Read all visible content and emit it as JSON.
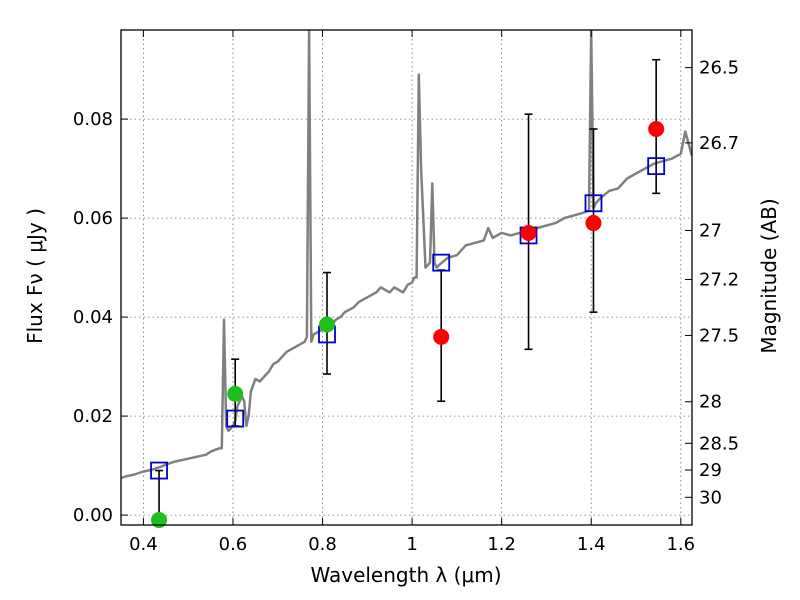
{
  "chart_data": {
    "type": "scatter",
    "xlabel": "Wavelength  λ (μm)",
    "ylabel": "Flux  Fν  ( μJy )",
    "ylabel_right": "Magnitude (AB)",
    "xlim": [
      0.35,
      1.625
    ],
    "ylim": [
      -0.002,
      0.098
    ],
    "grid": true,
    "x_ticks": [
      0.4,
      0.6,
      0.8,
      1.0,
      1.2,
      1.4,
      1.6
    ],
    "x_tick_labels": [
      "0.4",
      "0.6",
      "0.8",
      "1",
      "1.2",
      "1.4",
      "1.6"
    ],
    "y_ticks": [
      0.0,
      0.02,
      0.04,
      0.06,
      0.08
    ],
    "y_tick_labels": [
      "0.00",
      "0.02",
      "0.04",
      "0.06",
      "0.08"
    ],
    "right_ticks": [
      {
        "label": "26.5",
        "flux": 0.0904
      },
      {
        "label": "26.7",
        "flux": 0.0752
      },
      {
        "label": "27",
        "flux": 0.0575
      },
      {
        "label": "27.2",
        "flux": 0.0476
      },
      {
        "label": "27.5",
        "flux": 0.0363
      },
      {
        "label": "28",
        "flux": 0.0229
      },
      {
        "label": "28.5",
        "flux": 0.0145
      },
      {
        "label": "29",
        "flux": 0.0091
      },
      {
        "label": "30",
        "flux": 0.0036
      }
    ],
    "colors": {
      "model": "#808080",
      "detections_green": "#1fbf1f",
      "detections_red": "#ff0000",
      "synthetic_box": "#0000cc",
      "errorbar": "#000000"
    },
    "series": [
      {
        "kind": "model_spectrum",
        "x": [
          0.35,
          0.36,
          0.37,
          0.38,
          0.39,
          0.4,
          0.41,
          0.42,
          0.43,
          0.44,
          0.45,
          0.46,
          0.47,
          0.48,
          0.49,
          0.5,
          0.51,
          0.52,
          0.53,
          0.54,
          0.55,
          0.56,
          0.57,
          0.575,
          0.58,
          0.585,
          0.59,
          0.6,
          0.605,
          0.61,
          0.62,
          0.625,
          0.63,
          0.635,
          0.64,
          0.65,
          0.66,
          0.67,
          0.68,
          0.69,
          0.7,
          0.71,
          0.72,
          0.73,
          0.74,
          0.75,
          0.76,
          0.765,
          0.77,
          0.775,
          0.78,
          0.79,
          0.8,
          0.81,
          0.82,
          0.83,
          0.84,
          0.85,
          0.86,
          0.87,
          0.88,
          0.89,
          0.9,
          0.91,
          0.92,
          0.93,
          0.94,
          0.95,
          0.96,
          0.97,
          0.98,
          0.99,
          1.0,
          1.005,
          1.01,
          1.015,
          1.02,
          1.03,
          1.04,
          1.045,
          1.05,
          1.055,
          1.06,
          1.08,
          1.1,
          1.12,
          1.14,
          1.16,
          1.17,
          1.18,
          1.2,
          1.22,
          1.24,
          1.26,
          1.28,
          1.3,
          1.32,
          1.34,
          1.36,
          1.38,
          1.395,
          1.4,
          1.405,
          1.41,
          1.42,
          1.44,
          1.46,
          1.48,
          1.5,
          1.52,
          1.54,
          1.56,
          1.58,
          1.59,
          1.6,
          1.61,
          1.625
        ],
        "y": [
          0.0075,
          0.0078,
          0.008,
          0.0082,
          0.0085,
          0.0088,
          0.009,
          0.0092,
          0.0095,
          0.0098,
          0.0102,
          0.0105,
          0.0108,
          0.011,
          0.0112,
          0.0114,
          0.0116,
          0.0118,
          0.012,
          0.0122,
          0.0128,
          0.0132,
          0.0135,
          0.0135,
          0.0395,
          0.018,
          0.017,
          0.018,
          0.019,
          0.022,
          0.024,
          0.023,
          0.018,
          0.02,
          0.025,
          0.0275,
          0.027,
          0.028,
          0.029,
          0.0305,
          0.031,
          0.032,
          0.033,
          0.0335,
          0.034,
          0.0345,
          0.035,
          0.036,
          0.098,
          0.035,
          0.0365,
          0.037,
          0.0375,
          0.038,
          0.0385,
          0.0395,
          0.04,
          0.041,
          0.0415,
          0.042,
          0.043,
          0.0435,
          0.044,
          0.0445,
          0.045,
          0.046,
          0.0455,
          0.045,
          0.046,
          0.0455,
          0.045,
          0.0465,
          0.047,
          0.048,
          0.048,
          0.089,
          0.07,
          0.05,
          0.051,
          0.067,
          0.051,
          0.05,
          0.0505,
          0.052,
          0.0525,
          0.0545,
          0.055,
          0.0555,
          0.058,
          0.056,
          0.057,
          0.0565,
          0.057,
          0.0575,
          0.058,
          0.0585,
          0.059,
          0.06,
          0.0605,
          0.061,
          0.0615,
          0.098,
          0.062,
          0.063,
          0.064,
          0.0655,
          0.066,
          0.068,
          0.069,
          0.07,
          0.071,
          0.0715,
          0.072,
          0.0725,
          0.073,
          0.0775,
          0.0725
        ]
      },
      {
        "kind": "synthetic_photometry",
        "marker": "square",
        "x": [
          0.435,
          0.605,
          0.81,
          1.065,
          1.26,
          1.405,
          1.545
        ],
        "y": [
          0.009,
          0.0195,
          0.0365,
          0.051,
          0.0565,
          0.063,
          0.0705
        ]
      },
      {
        "kind": "observed",
        "marker": "circle",
        "color": "green",
        "x": [
          0.435,
          0.605,
          0.81
        ],
        "y": [
          -0.001,
          0.0245,
          0.0385
        ],
        "yerr_low": [
          -0.001,
          0.018,
          0.0285
        ],
        "yerr_high": [
          0.009,
          0.0315,
          0.049
        ]
      },
      {
        "kind": "observed",
        "marker": "circle",
        "color": "red",
        "x": [
          1.065,
          1.26,
          1.405,
          1.545
        ],
        "y": [
          0.036,
          0.057,
          0.059,
          0.078
        ],
        "yerr_low": [
          0.023,
          0.0335,
          0.041,
          0.065
        ],
        "yerr_high": [
          0.0495,
          0.081,
          0.078,
          0.092
        ]
      }
    ]
  }
}
